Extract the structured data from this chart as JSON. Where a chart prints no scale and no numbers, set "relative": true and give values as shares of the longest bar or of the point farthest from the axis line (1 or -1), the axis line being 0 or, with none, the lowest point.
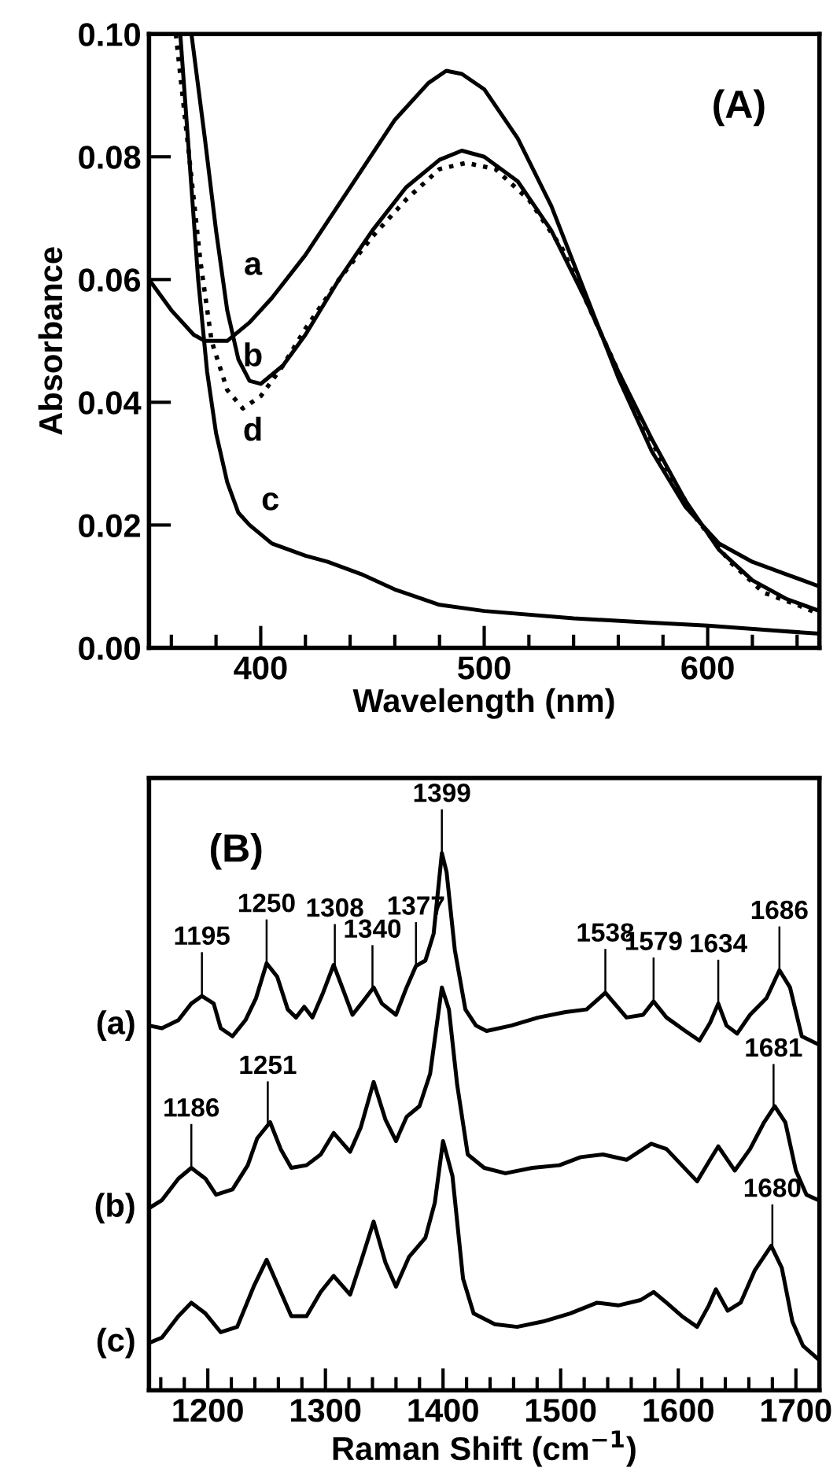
{
  "chart_data": [
    {
      "type": "line",
      "xlabel": "Wavelength (nm)",
      "ylabel": "Absorbance",
      "xlim": [
        350,
        650
      ],
      "ylim": [
        0,
        0.1
      ],
      "xticks": [
        {
          "value": 360,
          "label": null
        },
        {
          "value": 380,
          "label": null
        },
        400,
        {
          "value": 420,
          "label": null
        },
        {
          "value": 440,
          "label": null
        },
        {
          "value": 460,
          "label": null
        },
        {
          "value": 480,
          "label": null
        },
        500,
        {
          "value": 520,
          "label": null
        },
        {
          "value": 540,
          "label": null
        },
        {
          "value": 560,
          "label": null
        },
        {
          "value": 580,
          "label": null
        },
        600,
        {
          "value": 620,
          "label": null
        },
        {
          "value": 640,
          "label": null
        }
      ],
      "yticks": [
        {
          "value": 0,
          "label": "0.00"
        },
        {
          "value": 0.02,
          "label": "0.02"
        },
        {
          "value": 0.04,
          "label": "0.04"
        },
        {
          "value": 0.06,
          "label": "0.06"
        },
        {
          "value": 0.08,
          "label": "0.08"
        },
        {
          "value": 0.1,
          "label": "0.10"
        }
      ],
      "grid": false,
      "legend": false,
      "marker": "none",
      "series": [
        {
          "name": "a",
          "color": "#000000",
          "line_style": "solid",
          "x": [
            350,
            360,
            370,
            375,
            385,
            395,
            405,
            420,
            440,
            460,
            475,
            483,
            490,
            500,
            515,
            530,
            545,
            560,
            575,
            590,
            605,
            620,
            635,
            650
          ],
          "values": [
            0.06,
            0.055,
            0.051,
            0.05,
            0.05,
            0.053,
            0.057,
            0.064,
            0.075,
            0.086,
            0.092,
            0.094,
            0.0935,
            0.091,
            0.083,
            0.072,
            0.058,
            0.044,
            0.032,
            0.023,
            0.017,
            0.014,
            0.012,
            0.01
          ]
        },
        {
          "name": "b",
          "color": "#000000",
          "line_style": "solid",
          "x": [
            369,
            375,
            380,
            385,
            390,
            395,
            400,
            410,
            420,
            435,
            450,
            465,
            480,
            490,
            500,
            515,
            530,
            545,
            560,
            575,
            590,
            605,
            620,
            635,
            650
          ],
          "values": [
            0.1,
            0.083,
            0.068,
            0.055,
            0.047,
            0.0435,
            0.043,
            0.046,
            0.051,
            0.06,
            0.068,
            0.075,
            0.0795,
            0.081,
            0.08,
            0.076,
            0.068,
            0.057,
            0.045,
            0.034,
            0.024,
            0.016,
            0.011,
            0.008,
            0.006
          ]
        },
        {
          "name": "c",
          "color": "#000000",
          "line_style": "solid",
          "x": [
            364,
            368,
            372,
            376,
            380,
            385,
            390,
            395,
            405,
            420,
            430,
            445,
            460,
            480,
            500,
            540,
            570,
            600,
            630,
            650
          ],
          "values": [
            0.1,
            0.08,
            0.06,
            0.045,
            0.035,
            0.027,
            0.022,
            0.02,
            0.017,
            0.015,
            0.014,
            0.012,
            0.0095,
            0.007,
            0.006,
            0.0048,
            0.0042,
            0.0036,
            0.0028,
            0.0023
          ]
        },
        {
          "name": "d",
          "color": "#000000",
          "line_style": "dotted",
          "x": [
            362,
            368,
            373,
            378,
            385,
            392,
            400,
            410,
            420,
            435,
            450,
            465,
            480,
            492,
            505,
            520,
            535,
            550,
            565,
            580,
            595,
            610,
            625,
            640,
            650
          ],
          "values": [
            0.1,
            0.08,
            0.063,
            0.05,
            0.042,
            0.039,
            0.041,
            0.046,
            0.052,
            0.06,
            0.067,
            0.073,
            0.078,
            0.079,
            0.078,
            0.073,
            0.065,
            0.053,
            0.041,
            0.03,
            0.021,
            0.014,
            0.009,
            0.007,
            0.0055
          ]
        }
      ],
      "annotations": [
        "(A)"
      ]
    },
    {
      "type": "line",
      "xlabel": "Raman Shift (cm$^{−1}$)",
      "relative": true,
      "xlim": [
        1150,
        1720
      ],
      "xticks": [
        {
          "value": 1160,
          "label": null
        },
        {
          "value": 1180,
          "label": null
        },
        1200,
        {
          "value": 1220,
          "label": null
        },
        {
          "value": 1240,
          "label": null
        },
        {
          "value": 1260,
          "label": null
        },
        {
          "value": 1280,
          "label": null
        },
        1300,
        {
          "value": 1320,
          "label": null
        },
        {
          "value": 1340,
          "label": null
        },
        {
          "value": 1360,
          "label": null
        },
        {
          "value": 1380,
          "label": null
        },
        1400,
        {
          "value": 1420,
          "label": null
        },
        {
          "value": 1440,
          "label": null
        },
        {
          "value": 1460,
          "label": null
        },
        {
          "value": 1480,
          "label": null
        },
        1500,
        {
          "value": 1520,
          "label": null
        },
        {
          "value": 1540,
          "label": null
        },
        {
          "value": 1560,
          "label": null
        },
        {
          "value": 1580,
          "label": null
        },
        1600,
        {
          "value": 1620,
          "label": null
        },
        {
          "value": 1640,
          "label": null
        },
        {
          "value": 1660,
          "label": null
        },
        {
          "value": 1680,
          "label": null
        },
        1700
      ],
      "tick_labels": "x",
      "grid": false,
      "legend": false,
      "marker": "none",
      "line_style": "solid",
      "series": [
        {
          "name": "(a)",
          "color": "#000000",
          "x": [
            1150,
            1161,
            1175,
            1186,
            1195,
            1205,
            1211,
            1221,
            1232,
            1241,
            1250,
            1259,
            1268,
            1275,
            1282,
            1289,
            1298,
            1307,
            1316,
            1323,
            1332,
            1341,
            1348,
            1360,
            1369,
            1377,
            1385,
            1392,
            1399,
            1403,
            1410,
            1419,
            1428,
            1437,
            1458,
            1481,
            1504,
            1522,
            1538,
            1556,
            1570,
            1579,
            1590,
            1606,
            1618,
            1627,
            1634,
            1641,
            1650,
            1661,
            1675,
            1686,
            1695,
            1705,
            1719
          ],
          "values": [
            0.679,
            0.674,
            0.689,
            0.72,
            0.734,
            0.72,
            0.674,
            0.659,
            0.689,
            0.73,
            0.795,
            0.77,
            0.709,
            0.694,
            0.714,
            0.694,
            0.74,
            0.792,
            0.74,
            0.699,
            0.724,
            0.75,
            0.72,
            0.699,
            0.75,
            0.79,
            0.8,
            0.85,
            1.0,
            0.965,
            0.82,
            0.709,
            0.679,
            0.669,
            0.679,
            0.694,
            0.704,
            0.709,
            0.74,
            0.694,
            0.699,
            0.724,
            0.694,
            0.669,
            0.651,
            0.684,
            0.72,
            0.679,
            0.664,
            0.699,
            0.73,
            0.782,
            0.75,
            0.659,
            0.644
          ]
        },
        {
          "name": "(b)",
          "color": "#000000",
          "x": [
            1150,
            1161,
            1175,
            1186,
            1198,
            1207,
            1221,
            1234,
            1242,
            1253,
            1262,
            1271,
            1284,
            1296,
            1307,
            1321,
            1330,
            1341,
            1351,
            1360,
            1369,
            1380,
            1389,
            1399,
            1405,
            1412,
            1421,
            1435,
            1453,
            1476,
            1499,
            1517,
            1536,
            1556,
            1577,
            1590,
            1603,
            1616,
            1627,
            1634,
            1648,
            1661,
            1673,
            1682,
            1691,
            1700,
            1709,
            1719
          ],
          "values": [
            0.339,
            0.354,
            0.394,
            0.414,
            0.394,
            0.364,
            0.374,
            0.419,
            0.469,
            0.499,
            0.449,
            0.414,
            0.419,
            0.439,
            0.479,
            0.444,
            0.489,
            0.574,
            0.504,
            0.464,
            0.509,
            0.529,
            0.589,
            0.75,
            0.709,
            0.569,
            0.439,
            0.414,
            0.404,
            0.414,
            0.419,
            0.434,
            0.439,
            0.429,
            0.459,
            0.449,
            0.419,
            0.389,
            0.429,
            0.454,
            0.409,
            0.449,
            0.499,
            0.529,
            0.499,
            0.409,
            0.364,
            0.354
          ]
        },
        {
          "name": "(c)",
          "color": "#000000",
          "x": [
            1150,
            1161,
            1175,
            1186,
            1198,
            1211,
            1225,
            1239,
            1250,
            1262,
            1271,
            1284,
            1296,
            1307,
            1321,
            1330,
            1341,
            1351,
            1360,
            1371,
            1385,
            1393,
            1400,
            1408,
            1417,
            1426,
            1444,
            1463,
            1485,
            1508,
            1531,
            1549,
            1568,
            1579,
            1590,
            1603,
            1616,
            1626,
            1632,
            1642,
            1653,
            1665,
            1679,
            1688,
            1697,
            1706,
            1719
          ],
          "values": [
            0.088,
            0.098,
            0.138,
            0.163,
            0.143,
            0.108,
            0.118,
            0.193,
            0.243,
            0.183,
            0.138,
            0.138,
            0.183,
            0.213,
            0.178,
            0.238,
            0.314,
            0.238,
            0.193,
            0.248,
            0.284,
            0.349,
            0.464,
            0.399,
            0.208,
            0.143,
            0.123,
            0.118,
            0.128,
            0.143,
            0.163,
            0.158,
            0.168,
            0.183,
            0.163,
            0.138,
            0.118,
            0.158,
            0.188,
            0.148,
            0.163,
            0.223,
            0.269,
            0.228,
            0.128,
            0.083,
            0.058
          ]
        }
      ],
      "annotations": [
        "(B)"
      ],
      "ref_lines": [
        {
          "axis": "x",
          "value": 1195,
          "label": "1195",
          "color": "#000000"
        },
        {
          "axis": "x",
          "value": 1250,
          "label": "1250",
          "color": "#000000"
        },
        {
          "axis": "x",
          "value": 1308,
          "label": "1308",
          "color": "#000000"
        },
        {
          "axis": "x",
          "value": 1340,
          "label": "1340",
          "color": "#000000"
        },
        {
          "axis": "x",
          "value": 1377,
          "label": "1377",
          "color": "#000000"
        },
        {
          "axis": "x",
          "value": 1399,
          "label": "1399",
          "color": "#000000"
        },
        {
          "axis": "x",
          "value": 1538,
          "label": "1538",
          "color": "#000000"
        },
        {
          "axis": "x",
          "value": 1579,
          "label": "1579",
          "color": "#000000"
        },
        {
          "axis": "x",
          "value": 1634,
          "label": "1634",
          "color": "#000000"
        },
        {
          "axis": "x",
          "value": 1686,
          "label": "1686",
          "color": "#000000"
        },
        {
          "axis": "x",
          "value": 1186,
          "label": "1186",
          "color": "#000000"
        },
        {
          "axis": "x",
          "value": 1681,
          "label": "1681",
          "color": "#000000"
        },
        {
          "axis": "x",
          "value": 1251,
          "label": "1251",
          "color": "#000000"
        },
        {
          "axis": "x",
          "value": 1680,
          "label": "1680",
          "color": "#000000"
        }
      ]
    }
  ]
}
